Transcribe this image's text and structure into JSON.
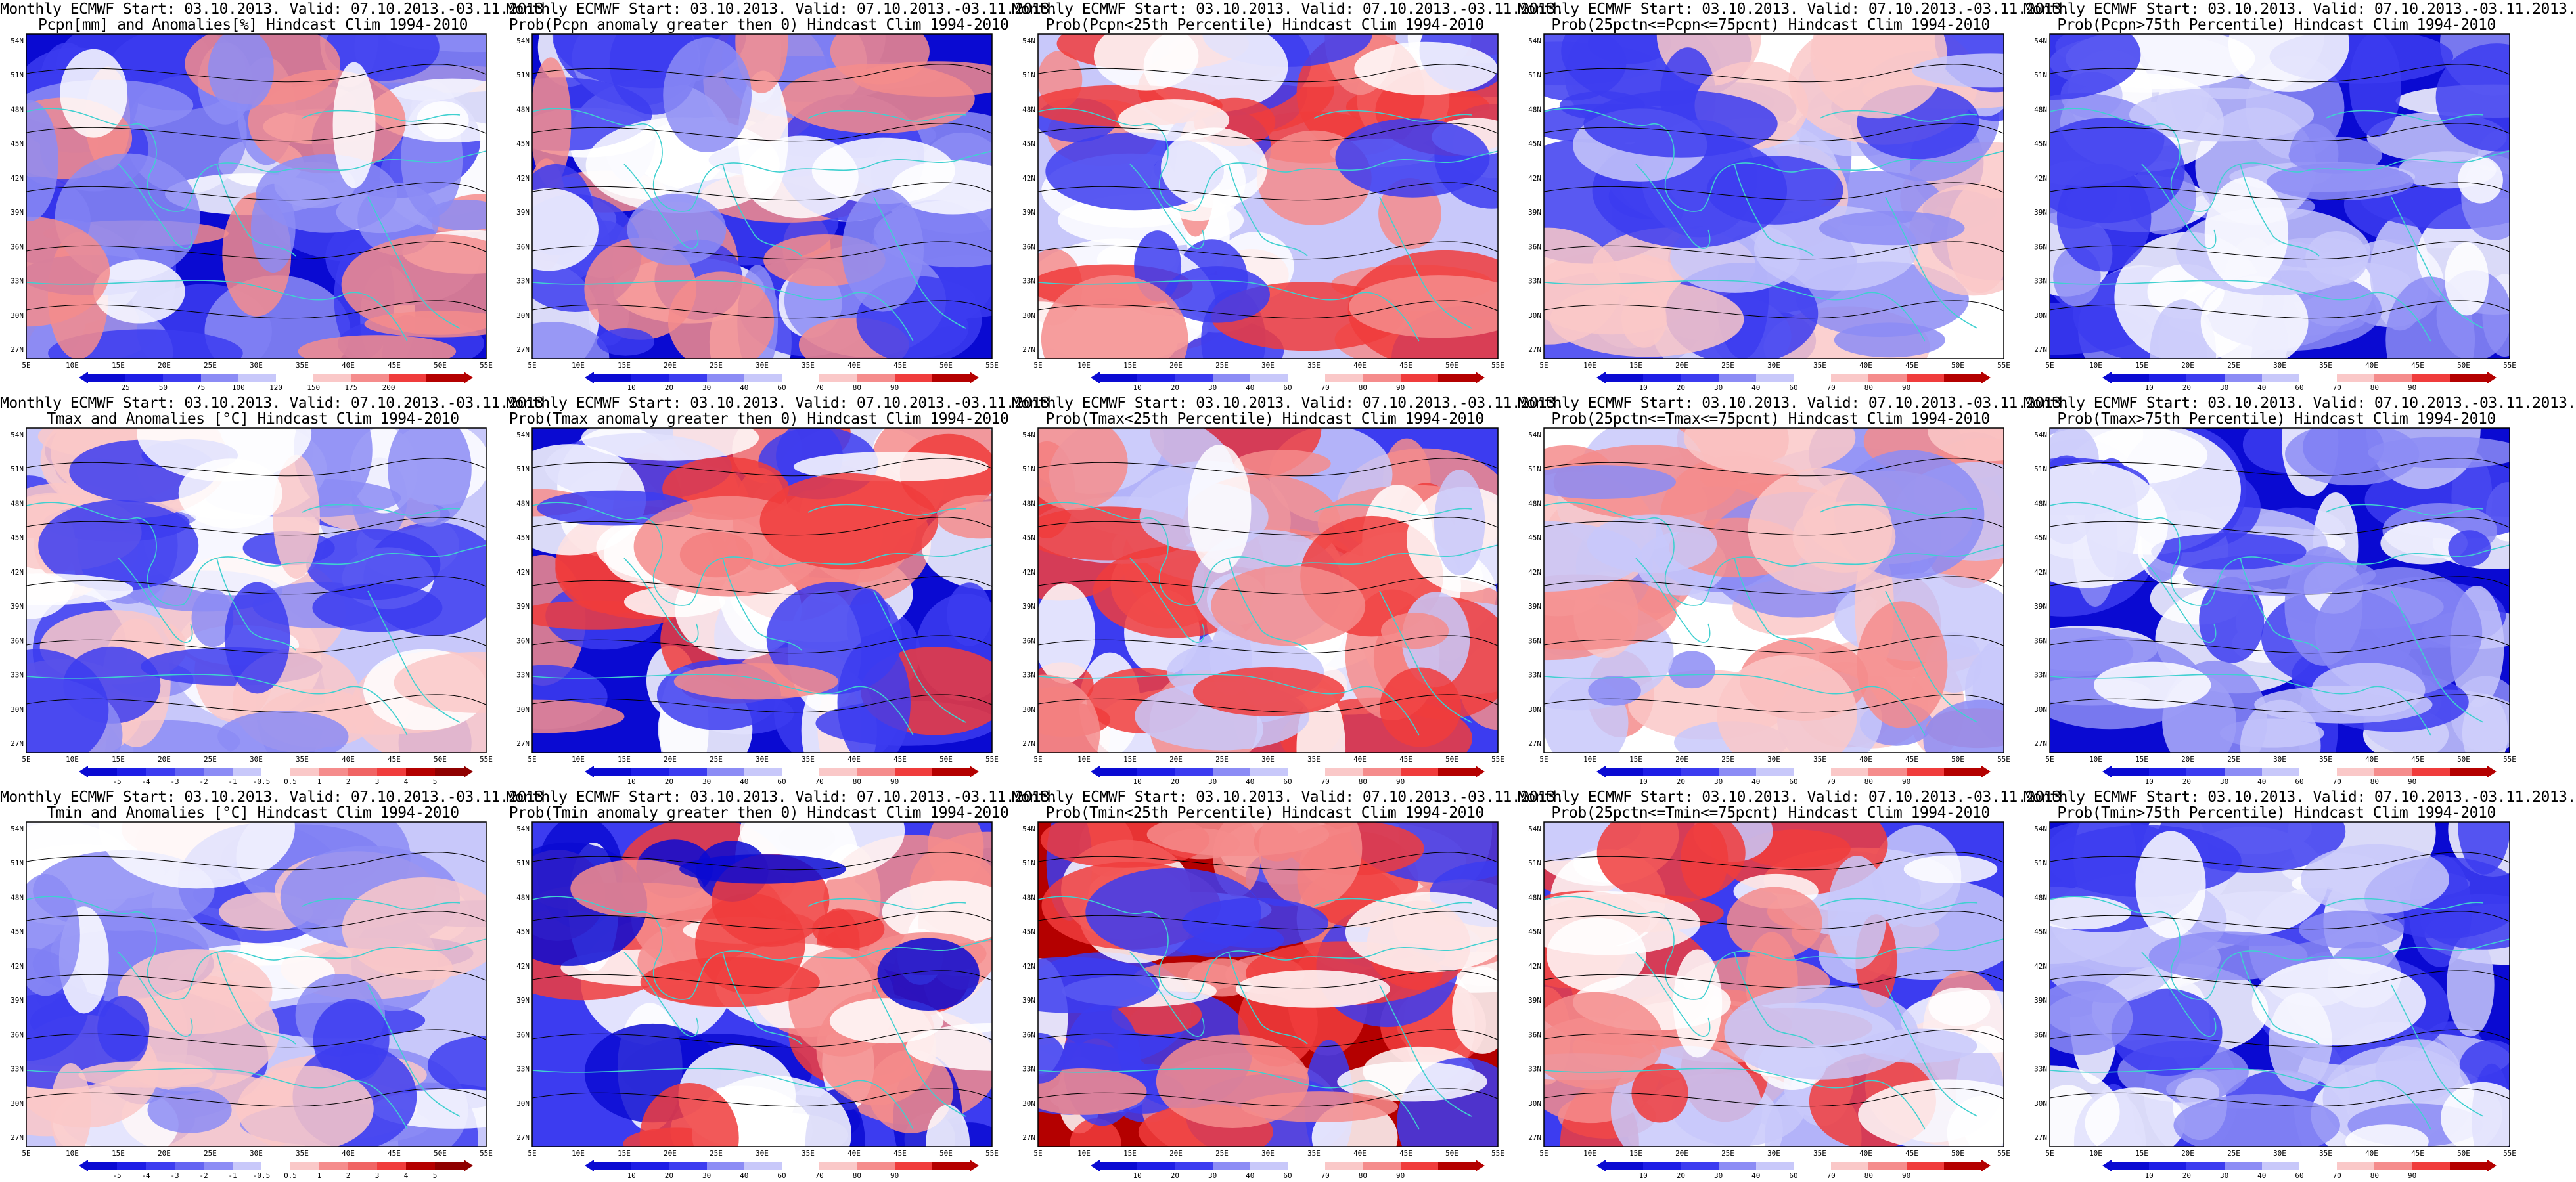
{
  "figure": {
    "panels": [
      {
        "id": "p11",
        "row": 0,
        "col": 0,
        "title1": "Monthly ECMWF Start: 03.10.2013. Valid: 07.10.2013.-03.11.2013.",
        "title2": "Pcpn[mm] and Anomalies[%] Hindcast Clim 1994-2010",
        "scheme": "anom",
        "ticks": [
          "25",
          "50",
          "75",
          "100",
          "120",
          "150",
          "175",
          "200"
        ]
      },
      {
        "id": "p12",
        "row": 0,
        "col": 1,
        "title1": "Monthly ECMWF Start: 03.10.2013. Valid: 07.10.2013.-03.11.2013.",
        "title2": "Prob(Pcpn anomaly greater then 0) Hindcast Clim 1994-2010",
        "scheme": "prob",
        "ticks": [
          "10",
          "20",
          "30",
          "40",
          "60",
          "70",
          "80",
          "90"
        ]
      },
      {
        "id": "p13",
        "row": 0,
        "col": 2,
        "title1": "Monthly ECMWF Start: 03.10.2013. Valid: 07.10.2013.-03.11.2013.",
        "title2": "Prob(Pcpn<25th Percentile) Hindcast Clim 1994-2010",
        "scheme": "prob",
        "ticks": [
          "10",
          "20",
          "30",
          "40",
          "60",
          "70",
          "80",
          "90"
        ]
      },
      {
        "id": "p14",
        "row": 0,
        "col": 3,
        "title1": "Monthly ECMWF Start: 03.10.2013. Valid: 07.10.2013.-03.11.2013.",
        "title2": "Prob(25pctn<=Pcpn<=75pcnt) Hindcast Clim 1994-2010",
        "scheme": "prob",
        "ticks": [
          "10",
          "20",
          "30",
          "40",
          "60",
          "70",
          "80",
          "90"
        ]
      },
      {
        "id": "p15",
        "row": 0,
        "col": 4,
        "title1": "Monthly ECMWF Start: 03.10.2013. Valid: 07.10.2013.-03.11.2013.",
        "title2": "Prob(Pcpn>75th Percentile) Hindcast Clim 1994-2010",
        "scheme": "prob",
        "ticks": [
          "10",
          "20",
          "30",
          "40",
          "60",
          "70",
          "80",
          "90"
        ]
      },
      {
        "id": "p21",
        "row": 1,
        "col": 0,
        "title1": "Monthly ECMWF Start: 03.10.2013. Valid: 07.10.2013.-03.11.2013.",
        "title2": "Tmax and Anomalies [°C] Hindcast Clim 1994-2010",
        "scheme": "temp",
        "ticks": [
          "-5",
          "-4",
          "-3",
          "-2",
          "-1",
          "-0.5",
          "0.5",
          "1",
          "2",
          "3",
          "4",
          "5"
        ]
      },
      {
        "id": "p22",
        "row": 1,
        "col": 1,
        "title1": "Monthly ECMWF Start: 03.10.2013. Valid: 07.10.2013.-03.11.2013.",
        "title2": "Prob(Tmax anomaly greater then 0) Hindcast Clim 1994-2010",
        "scheme": "prob",
        "ticks": [
          "10",
          "20",
          "30",
          "40",
          "60",
          "70",
          "80",
          "90"
        ]
      },
      {
        "id": "p23",
        "row": 1,
        "col": 2,
        "title1": "Monthly ECMWF Start: 03.10.2013. Valid: 07.10.2013.-03.11.2013.",
        "title2": "Prob(Tmax<25th Percentile) Hindcast Clim 1994-2010",
        "scheme": "prob",
        "ticks": [
          "10",
          "20",
          "30",
          "40",
          "60",
          "70",
          "80",
          "90"
        ]
      },
      {
        "id": "p24",
        "row": 1,
        "col": 3,
        "title1": "Monthly ECMWF Start: 03.10.2013. Valid: 07.10.2013.-03.11.2013.",
        "title2": "Prob(25pctn<=Tmax<=75pcnt) Hindcast Clim 1994-2010",
        "scheme": "prob",
        "ticks": [
          "10",
          "20",
          "30",
          "40",
          "60",
          "70",
          "80",
          "90"
        ]
      },
      {
        "id": "p25",
        "row": 1,
        "col": 4,
        "title1": "Monthly ECMWF Start: 03.10.2013. Valid: 07.10.2013.-03.11.2013.",
        "title2": "Prob(Tmax>75th Percentile) Hindcast Clim 1994-2010",
        "scheme": "prob",
        "ticks": [
          "10",
          "20",
          "30",
          "40",
          "60",
          "70",
          "80",
          "90"
        ]
      },
      {
        "id": "p31",
        "row": 2,
        "col": 0,
        "title1": "Monthly ECMWF Start: 03.10.2013. Valid: 07.10.2013.-03.11.2013.",
        "title2": "Tmin and Anomalies [°C] Hindcast Clim 1994-2010",
        "scheme": "temp",
        "ticks": [
          "-5",
          "-4",
          "-3",
          "-2",
          "-1",
          "-0.5",
          "0.5",
          "1",
          "2",
          "3",
          "4",
          "5"
        ]
      },
      {
        "id": "p32",
        "row": 2,
        "col": 1,
        "title1": "Monthly ECMWF Start: 03.10.2013. Valid: 07.10.2013.-03.11.2013.",
        "title2": "Prob(Tmin anomaly greater then 0) Hindcast Clim 1994-2010",
        "scheme": "prob",
        "ticks": [
          "10",
          "20",
          "30",
          "40",
          "60",
          "70",
          "80",
          "90"
        ]
      },
      {
        "id": "p33",
        "row": 2,
        "col": 2,
        "title1": "Monthly ECMWF Start: 03.10.2013. Valid: 07.10.2013.-03.11.2013.",
        "title2": "Prob(Tmin<25th Percentile) Hindcast Clim 1994-2010",
        "scheme": "prob",
        "ticks": [
          "10",
          "20",
          "30",
          "40",
          "60",
          "70",
          "80",
          "90"
        ]
      },
      {
        "id": "p34",
        "row": 2,
        "col": 3,
        "title1": "Monthly ECMWF Start: 03.10.2013. Valid: 07.10.2013.-03.11.2013.",
        "title2": "Prob(25pctn<=Tmin<=75pcnt) Hindcast Clim 1994-2010",
        "scheme": "prob",
        "ticks": [
          "10",
          "20",
          "30",
          "40",
          "60",
          "70",
          "80",
          "90"
        ]
      },
      {
        "id": "p35",
        "row": 2,
        "col": 4,
        "title1": "Monthly ECMWF Start: 03.10.2013. Valid: 07.10.2013.-03.11.2013.",
        "title2": "Prob(Tmin>75th Percentile) Hindcast Clim 1994-2010",
        "scheme": "prob",
        "ticks": [
          "10",
          "20",
          "30",
          "40",
          "60",
          "70",
          "80",
          "90"
        ]
      }
    ],
    "lon_labels": [
      "5E",
      "10E",
      "15E",
      "20E",
      "25E",
      "30E",
      "35E",
      "40E",
      "45E",
      "50E",
      "55E"
    ],
    "lat_labels": [
      "54N",
      "51N",
      "48N",
      "45N",
      "42N",
      "39N",
      "36N",
      "33N",
      "30N",
      "27N"
    ],
    "colors": {
      "deep_blue": "#0a0ad2",
      "blue": "#3c3cf0",
      "light_blue": "#8c8cf5",
      "pale_blue": "#c8c8fa",
      "white": "#ffffff",
      "pale_red": "#fac8c8",
      "light_red": "#f58c8c",
      "red": "#f03c3c",
      "deep_red": "#b40000",
      "coast": "#40d0d0",
      "contour": "#000000"
    }
  }
}
